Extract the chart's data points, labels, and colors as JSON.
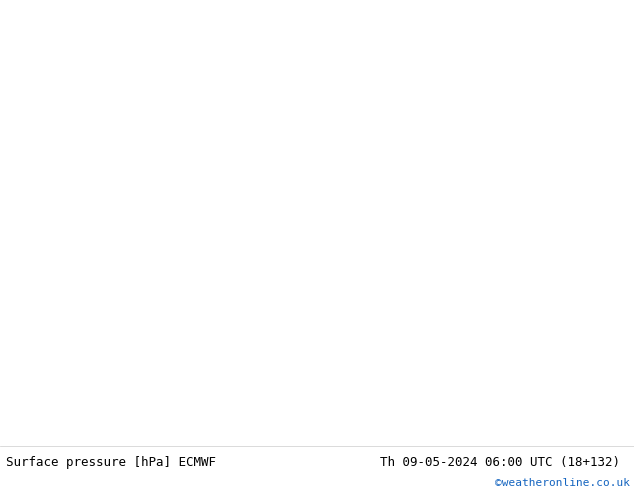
{
  "title_left": "Surface pressure [hPa] ECMWF",
  "title_right": "Th 09-05-2024 06:00 UTC (18+132)",
  "copyright": "©weatheronline.co.uk",
  "fig_width": 6.34,
  "fig_height": 4.9,
  "dpi": 100,
  "land_color": "#aad4a0",
  "sea_color": "#d8ecd8",
  "white_area_color": "#e8f0e8",
  "bottom_bar_color": "#ffffff",
  "title_fontsize": 9,
  "copyright_fontsize": 8,
  "copyright_color": "#1565c0",
  "map_extent": [
    -10,
    60,
    20,
    55
  ],
  "isobar_red_color": "#cc0000",
  "isobar_black_color": "#000000",
  "isobar_blue_color": "#0000cc"
}
